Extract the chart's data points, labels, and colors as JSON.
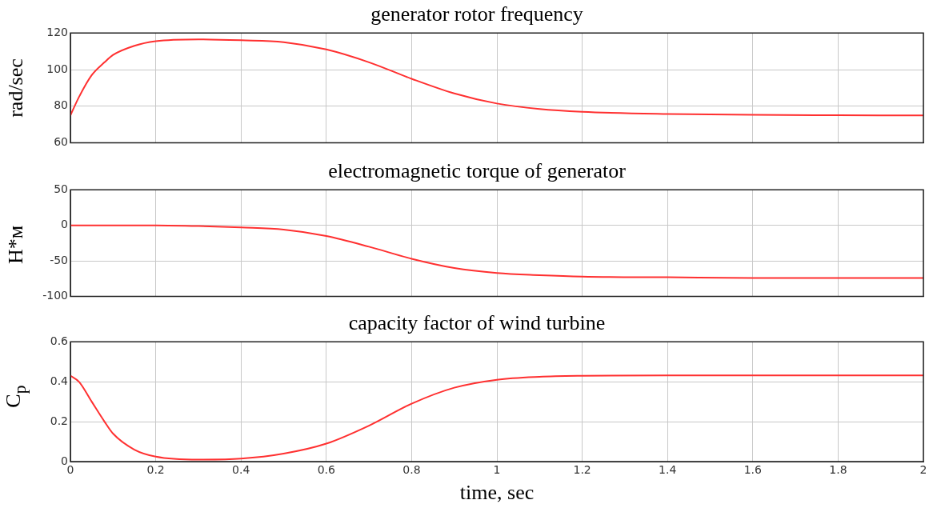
{
  "chart_data": [
    {
      "type": "line",
      "title": "generator rotor frequency",
      "ylabel": "rad/sec",
      "x": [
        0,
        0.02,
        0.05,
        0.08,
        0.1,
        0.15,
        0.2,
        0.3,
        0.4,
        0.5,
        0.6,
        0.7,
        0.8,
        0.9,
        1.0,
        1.1,
        1.2,
        1.4,
        1.6,
        1.8,
        2.0
      ],
      "series": [
        {
          "color": "#ff3030",
          "values": [
            75,
            85,
            97,
            104,
            108,
            113,
            115.5,
            116.5,
            116,
            115,
            111,
            104,
            95,
            87,
            81.5,
            78.5,
            77,
            75.8,
            75.3,
            75.1,
            75
          ]
        }
      ],
      "xlim": [
        0,
        2
      ],
      "xticks": [
        0,
        0.2,
        0.4,
        0.6,
        0.8,
        1,
        1.2,
        1.4,
        1.6,
        1.8,
        2
      ],
      "ylim": [
        60,
        120
      ],
      "yticks": [
        60,
        80,
        100,
        120
      ],
      "grid": true,
      "tick_labels": "y",
      "marker": "none",
      "line_style": "solid"
    },
    {
      "type": "line",
      "title": "electromagnetic torque of generator",
      "ylabel": "Н*м",
      "x": [
        0,
        0.2,
        0.3,
        0.4,
        0.5,
        0.6,
        0.7,
        0.8,
        0.9,
        1.0,
        1.1,
        1.2,
        1.4,
        1.6,
        1.8,
        2.0
      ],
      "series": [
        {
          "color": "#ff3030",
          "values": [
            0,
            0,
            -1,
            -3,
            -6,
            -15,
            -30,
            -47,
            -60,
            -67,
            -70,
            -72,
            -73,
            -74,
            -74,
            -74
          ]
        }
      ],
      "xlim": [
        0,
        2
      ],
      "xticks": [
        0,
        0.2,
        0.4,
        0.6,
        0.8,
        1,
        1.2,
        1.4,
        1.6,
        1.8,
        2
      ],
      "ylim": [
        -100,
        50
      ],
      "yticks": [
        -100,
        -50,
        0,
        50
      ],
      "grid": true,
      "tick_labels": "y",
      "marker": "none",
      "line_style": "solid"
    },
    {
      "type": "line",
      "title": "capacity factor of wind turbine",
      "ylabel": "C$_{p}$",
      "xlabel": "time, sec",
      "x": [
        0,
        0.02,
        0.05,
        0.08,
        0.1,
        0.15,
        0.2,
        0.3,
        0.4,
        0.5,
        0.6,
        0.7,
        0.8,
        0.9,
        1.0,
        1.1,
        1.2,
        1.4,
        1.6,
        1.8,
        2.0
      ],
      "series": [
        {
          "color": "#ff3030",
          "values": [
            0.43,
            0.4,
            0.3,
            0.2,
            0.14,
            0.06,
            0.025,
            0.01,
            0.015,
            0.04,
            0.09,
            0.18,
            0.29,
            0.37,
            0.41,
            0.425,
            0.43,
            0.432,
            0.432,
            0.432,
            0.432
          ]
        }
      ],
      "xlim": [
        0,
        2
      ],
      "xticks": [
        0,
        0.2,
        0.4,
        0.6,
        0.8,
        1,
        1.2,
        1.4,
        1.6,
        1.8,
        2
      ],
      "ylim": [
        0,
        0.6
      ],
      "yticks": [
        0,
        0.2,
        0.4,
        0.6
      ],
      "grid": true,
      "marker": "none",
      "line_style": "solid"
    }
  ]
}
